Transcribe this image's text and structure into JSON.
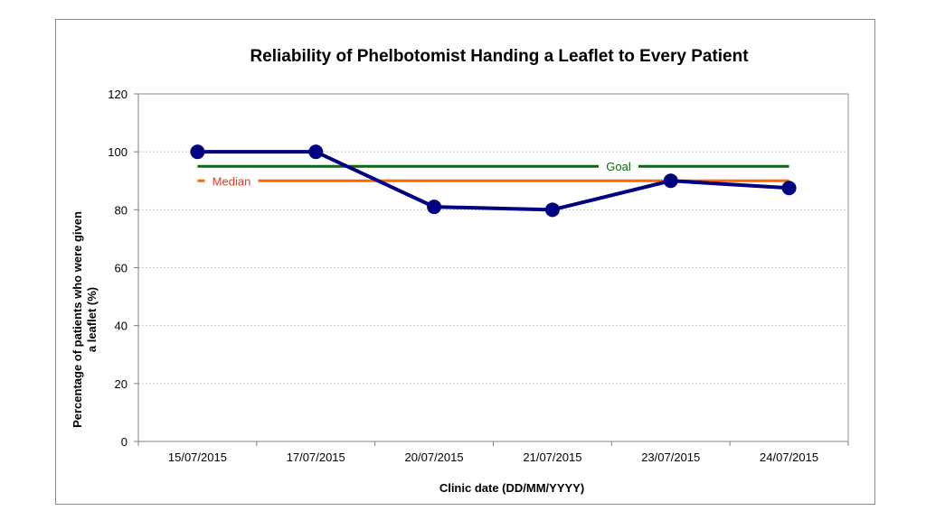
{
  "chart_data": {
    "type": "line",
    "title": "Reliability of Phelbotomist Handing a Leaflet to Every Patient",
    "xlabel": "Clinic date (DD/MM/YYYY)",
    "ylabel_lines": [
      "Percentage of patients who were given",
      "a leaflet  (%)"
    ],
    "categories": [
      "15/07/2015",
      "17/07/2015",
      "20/07/2015",
      "21/07/2015",
      "23/07/2015",
      "24/07/2015"
    ],
    "series": [
      {
        "values": [
          100,
          100,
          81,
          80,
          90,
          87.5
        ],
        "color": "#000080"
      }
    ],
    "reference_lines": [
      {
        "name": "Goal",
        "value": 95,
        "color": "#007000",
        "label_color": "#007000"
      },
      {
        "name": "Median",
        "value": 90,
        "color": "#ff6600",
        "label_color": "#e8381e"
      }
    ],
    "ylim": [
      0,
      120
    ],
    "yticks": [
      0,
      20,
      40,
      60,
      80,
      100,
      120
    ],
    "grid": true,
    "legend": "none"
  }
}
